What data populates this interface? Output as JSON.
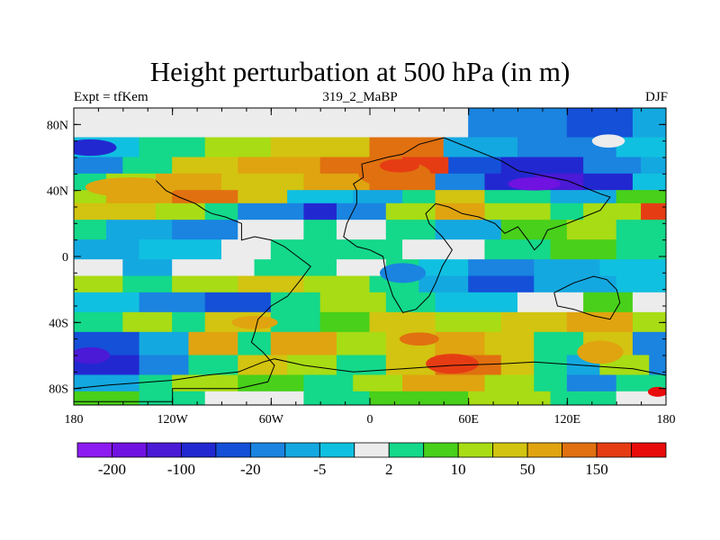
{
  "title": "Height perturbation at 500 hPa (in m)",
  "subtitle_left": "Expt = tfKem",
  "subtitle_center": "319_2_MaBP",
  "subtitle_right": "DJF",
  "map": {
    "lon_range": [
      -180,
      180
    ],
    "lat_range": [
      -90,
      90
    ],
    "x_ticks": [
      {
        "lon": -180,
        "label": "180"
      },
      {
        "lon": -120,
        "label": "120W"
      },
      {
        "lon": -60,
        "label": "60W"
      },
      {
        "lon": 0,
        "label": "0"
      },
      {
        "lon": 60,
        "label": "60E"
      },
      {
        "lon": 120,
        "label": "120E"
      },
      {
        "lon": 180,
        "label": "180"
      }
    ],
    "y_ticks": [
      {
        "lat": 80,
        "label": "80N"
      },
      {
        "lat": 40,
        "label": "40N"
      },
      {
        "lat": 0,
        "label": "0"
      },
      {
        "lat": -40,
        "label": "40S"
      },
      {
        "lat": -80,
        "label": "80S"
      }
    ]
  },
  "colorbar": {
    "colors": [
      "#8c1cf0",
      "#7012e0",
      "#4a1ad6",
      "#2228d0",
      "#1450d8",
      "#1a84e0",
      "#14a8e0",
      "#10c0e0",
      "#ececec",
      "#14d88a",
      "#48d01a",
      "#a8dc14",
      "#d2c410",
      "#e0a410",
      "#e07010",
      "#e63c14",
      "#e80c0c"
    ],
    "labels": [
      {
        "boundary": 1,
        "label": "-200"
      },
      {
        "boundary": 3,
        "label": "-100"
      },
      {
        "boundary": 5,
        "label": "-20"
      },
      {
        "boundary": 7,
        "label": "-5"
      },
      {
        "boundary": 9,
        "label": "2"
      },
      {
        "boundary": 11,
        "label": "10"
      },
      {
        "boundary": 13,
        "label": "50"
      },
      {
        "boundary": 15,
        "label": "150"
      }
    ]
  },
  "bands": [
    {
      "lat": [
        90,
        72
      ],
      "segments": [
        [
          -180,
          8
        ],
        [
          0,
          8
        ],
        [
          60,
          5
        ],
        [
          120,
          4
        ],
        [
          160,
          6
        ]
      ]
    },
    {
      "lat": [
        72,
        60
      ],
      "segments": [
        [
          -180,
          7
        ],
        [
          -140,
          9
        ],
        [
          -100,
          11
        ],
        [
          -60,
          12
        ],
        [
          0,
          14
        ],
        [
          45,
          6
        ],
        [
          90,
          5
        ],
        [
          150,
          7
        ]
      ]
    },
    {
      "lat": [
        60,
        50
      ],
      "segments": [
        [
          -180,
          5
        ],
        [
          -150,
          9
        ],
        [
          -120,
          12
        ],
        [
          -80,
          13
        ],
        [
          -30,
          14
        ],
        [
          20,
          15
        ],
        [
          48,
          4
        ],
        [
          80,
          3
        ],
        [
          130,
          5
        ],
        [
          165,
          6
        ]
      ]
    },
    {
      "lat": [
        50,
        40
      ],
      "segments": [
        [
          -180,
          9
        ],
        [
          -160,
          11
        ],
        [
          -130,
          13
        ],
        [
          -90,
          12
        ],
        [
          -40,
          13
        ],
        [
          0,
          14
        ],
        [
          40,
          5
        ],
        [
          70,
          3
        ],
        [
          100,
          2
        ],
        [
          130,
          3
        ],
        [
          160,
          7
        ]
      ]
    },
    {
      "lat": [
        40,
        32
      ],
      "segments": [
        [
          -180,
          11
        ],
        [
          -160,
          13
        ],
        [
          -120,
          14
        ],
        [
          -80,
          12
        ],
        [
          -50,
          7
        ],
        [
          -10,
          6
        ],
        [
          20,
          9
        ],
        [
          40,
          12
        ],
        [
          70,
          9
        ],
        [
          110,
          6
        ],
        [
          150,
          10
        ]
      ]
    },
    {
      "lat": [
        32,
        22
      ],
      "segments": [
        [
          -180,
          12
        ],
        [
          -130,
          11
        ],
        [
          -100,
          9
        ],
        [
          -80,
          5
        ],
        [
          -40,
          3
        ],
        [
          -20,
          5
        ],
        [
          10,
          11
        ],
        [
          40,
          13
        ],
        [
          70,
          11
        ],
        [
          110,
          9
        ],
        [
          130,
          11
        ],
        [
          165,
          15
        ]
      ]
    },
    {
      "lat": [
        22,
        10
      ],
      "segments": [
        [
          -180,
          9
        ],
        [
          -160,
          6
        ],
        [
          -120,
          5
        ],
        [
          -80,
          8
        ],
        [
          -40,
          9
        ],
        [
          -20,
          8
        ],
        [
          10,
          9
        ],
        [
          40,
          6
        ],
        [
          80,
          10
        ],
        [
          120,
          11
        ],
        [
          150,
          9
        ]
      ]
    },
    {
      "lat": [
        10,
        -2
      ],
      "segments": [
        [
          -180,
          6
        ],
        [
          -140,
          7
        ],
        [
          -90,
          8
        ],
        [
          -60,
          9
        ],
        [
          -10,
          9
        ],
        [
          20,
          8
        ],
        [
          70,
          9
        ],
        [
          110,
          10
        ],
        [
          150,
          9
        ]
      ]
    },
    {
      "lat": [
        -2,
        -12
      ],
      "segments": [
        [
          -180,
          8
        ],
        [
          -150,
          6
        ],
        [
          -120,
          8
        ],
        [
          -70,
          9
        ],
        [
          -20,
          8
        ],
        [
          10,
          9
        ],
        [
          30,
          7
        ],
        [
          60,
          5
        ],
        [
          100,
          6
        ],
        [
          140,
          7
        ]
      ]
    },
    {
      "lat": [
        -12,
        -22
      ],
      "segments": [
        [
          -180,
          11
        ],
        [
          -150,
          9
        ],
        [
          -120,
          11
        ],
        [
          -80,
          12
        ],
        [
          -40,
          11
        ],
        [
          0,
          9
        ],
        [
          30,
          6
        ],
        [
          60,
          4
        ],
        [
          100,
          6
        ],
        [
          150,
          7
        ]
      ]
    },
    {
      "lat": [
        -22,
        -34
      ],
      "segments": [
        [
          -180,
          7
        ],
        [
          -140,
          5
        ],
        [
          -100,
          4
        ],
        [
          -60,
          9
        ],
        [
          -30,
          11
        ],
        [
          10,
          9
        ],
        [
          40,
          7
        ],
        [
          90,
          8
        ],
        [
          130,
          10
        ],
        [
          160,
          8
        ]
      ]
    },
    {
      "lat": [
        -34,
        -46
      ],
      "segments": [
        [
          -180,
          9
        ],
        [
          -150,
          11
        ],
        [
          -120,
          9
        ],
        [
          -100,
          12
        ],
        [
          -60,
          9
        ],
        [
          -30,
          10
        ],
        [
          0,
          12
        ],
        [
          40,
          11
        ],
        [
          80,
          12
        ],
        [
          120,
          13
        ],
        [
          160,
          11
        ]
      ]
    },
    {
      "lat": [
        -46,
        -60
      ],
      "segments": [
        [
          -180,
          4
        ],
        [
          -140,
          6
        ],
        [
          -110,
          13
        ],
        [
          -80,
          9
        ],
        [
          -60,
          13
        ],
        [
          -20,
          11
        ],
        [
          10,
          12
        ],
        [
          40,
          13
        ],
        [
          70,
          12
        ],
        [
          100,
          9
        ],
        [
          130,
          12
        ],
        [
          160,
          5
        ]
      ]
    },
    {
      "lat": [
        -60,
        -72
      ],
      "segments": [
        [
          -180,
          3
        ],
        [
          -140,
          5
        ],
        [
          -110,
          9
        ],
        [
          -80,
          12
        ],
        [
          -50,
          11
        ],
        [
          -20,
          9
        ],
        [
          10,
          12
        ],
        [
          40,
          14
        ],
        [
          80,
          12
        ],
        [
          100,
          9
        ],
        [
          120,
          6
        ],
        [
          140,
          11
        ],
        [
          170,
          5
        ]
      ]
    },
    {
      "lat": [
        -72,
        -82
      ],
      "segments": [
        [
          -180,
          6
        ],
        [
          -140,
          9
        ],
        [
          -120,
          11
        ],
        [
          -80,
          10
        ],
        [
          -40,
          9
        ],
        [
          -10,
          11
        ],
        [
          20,
          13
        ],
        [
          70,
          11
        ],
        [
          100,
          9
        ],
        [
          120,
          5
        ],
        [
          150,
          9
        ]
      ]
    },
    {
      "lat": [
        -82,
        -90
      ],
      "segments": [
        [
          -180,
          10
        ],
        [
          -140,
          9
        ],
        [
          -100,
          8
        ],
        [
          -40,
          9
        ],
        [
          0,
          10
        ],
        [
          60,
          11
        ],
        [
          110,
          9
        ],
        [
          150,
          8
        ]
      ]
    }
  ],
  "blobs": [
    {
      "lon": -145,
      "lat": 42,
      "rx": 28,
      "ry": 6,
      "color": 13
    },
    {
      "lon": 15,
      "lat": 50,
      "rx": 22,
      "ry": 8,
      "color": 14
    },
    {
      "lon": 18,
      "lat": 55,
      "rx": 12,
      "ry": 4,
      "color": 15
    },
    {
      "lon": 100,
      "lat": 44,
      "rx": 16,
      "ry": 4,
      "color": 1
    },
    {
      "lon": 145,
      "lat": 70,
      "rx": 10,
      "ry": 4,
      "color": 8
    },
    {
      "lon": -170,
      "lat": -60,
      "rx": 12,
      "ry": 5,
      "color": 2
    },
    {
      "lon": 50,
      "lat": -65,
      "rx": 16,
      "ry": 6,
      "color": 15
    },
    {
      "lon": 140,
      "lat": -58,
      "rx": 14,
      "ry": 7,
      "color": 13
    },
    {
      "lon": 30,
      "lat": -50,
      "rx": 12,
      "ry": 4,
      "color": 14
    },
    {
      "lon": -70,
      "lat": -40,
      "rx": 14,
      "ry": 4,
      "color": 13
    },
    {
      "lon": 175,
      "lat": -82,
      "rx": 6,
      "ry": 3,
      "color": 16
    },
    {
      "lon": 20,
      "lat": -10,
      "rx": 14,
      "ry": 6,
      "color": 5
    },
    {
      "lon": -170,
      "lat": 66,
      "rx": 16,
      "ry": 5,
      "color": 3
    }
  ],
  "coastlines": [
    [
      [
        -180,
        -88
      ],
      [
        -120,
        -88
      ],
      [
        -120,
        -80
      ],
      [
        -80,
        -80
      ],
      [
        -62,
        -76
      ],
      [
        -58,
        -66
      ],
      [
        -65,
        -58
      ],
      [
        -72,
        -52
      ],
      [
        -70,
        -46
      ],
      [
        -68,
        -38
      ],
      [
        -60,
        -30
      ],
      [
        -50,
        -24
      ],
      [
        -42,
        -14
      ],
      [
        -36,
        -6
      ],
      [
        -44,
        0
      ],
      [
        -52,
        6
      ],
      [
        -60,
        10
      ],
      [
        -70,
        12
      ],
      [
        -78,
        10
      ],
      [
        -78,
        20
      ],
      [
        -88,
        24
      ],
      [
        -96,
        26
      ],
      [
        -100,
        28
      ],
      [
        -106,
        32
      ],
      [
        -116,
        36
      ],
      [
        -124,
        40
      ],
      [
        -130,
        46
      ]
    ],
    [
      [
        -5,
        56
      ],
      [
        10,
        60
      ],
      [
        20,
        62
      ],
      [
        30,
        68
      ],
      [
        45,
        72
      ],
      [
        60,
        66
      ],
      [
        70,
        62
      ],
      [
        80,
        58
      ],
      [
        90,
        52
      ],
      [
        100,
        50
      ],
      [
        110,
        48
      ],
      [
        120,
        46
      ],
      [
        130,
        42
      ],
      [
        140,
        38
      ],
      [
        146,
        36
      ],
      [
        140,
        28
      ],
      [
        130,
        24
      ],
      [
        120,
        20
      ],
      [
        108,
        16
      ],
      [
        104,
        8
      ],
      [
        100,
        4
      ],
      [
        96,
        10
      ],
      [
        90,
        18
      ],
      [
        82,
        14
      ],
      [
        76,
        20
      ],
      [
        66,
        24
      ],
      [
        56,
        26
      ],
      [
        48,
        30
      ],
      [
        40,
        32
      ],
      [
        34,
        26
      ],
      [
        36,
        20
      ],
      [
        44,
        12
      ],
      [
        50,
        4
      ],
      [
        44,
        -6
      ],
      [
        40,
        -16
      ],
      [
        36,
        -24
      ],
      [
        28,
        -32
      ],
      [
        20,
        -34
      ],
      [
        14,
        -24
      ],
      [
        10,
        -12
      ],
      [
        8,
        0
      ],
      [
        0,
        4
      ],
      [
        -8,
        6
      ],
      [
        -16,
        12
      ],
      [
        -14,
        20
      ],
      [
        -8,
        32
      ],
      [
        -8,
        40
      ],
      [
        -10,
        44
      ],
      [
        -4,
        48
      ],
      [
        -5,
        56
      ]
    ],
    [
      [
        -180,
        -80
      ],
      [
        -160,
        -78
      ],
      [
        -120,
        -75
      ],
      [
        -100,
        -72
      ],
      [
        -80,
        -70
      ],
      [
        -65,
        -64
      ],
      [
        -58,
        -62
      ],
      [
        -40,
        -66
      ],
      [
        -10,
        -70
      ],
      [
        20,
        -68
      ],
      [
        50,
        -66
      ],
      [
        80,
        -65
      ],
      [
        100,
        -64
      ],
      [
        130,
        -66
      ],
      [
        160,
        -68
      ],
      [
        180,
        -72
      ]
    ],
    [
      [
        112,
        -22
      ],
      [
        124,
        -16
      ],
      [
        136,
        -12
      ],
      [
        144,
        -14
      ],
      [
        150,
        -20
      ],
      [
        152,
        -28
      ],
      [
        146,
        -38
      ],
      [
        136,
        -36
      ],
      [
        124,
        -32
      ],
      [
        114,
        -30
      ],
      [
        112,
        -22
      ]
    ]
  ]
}
